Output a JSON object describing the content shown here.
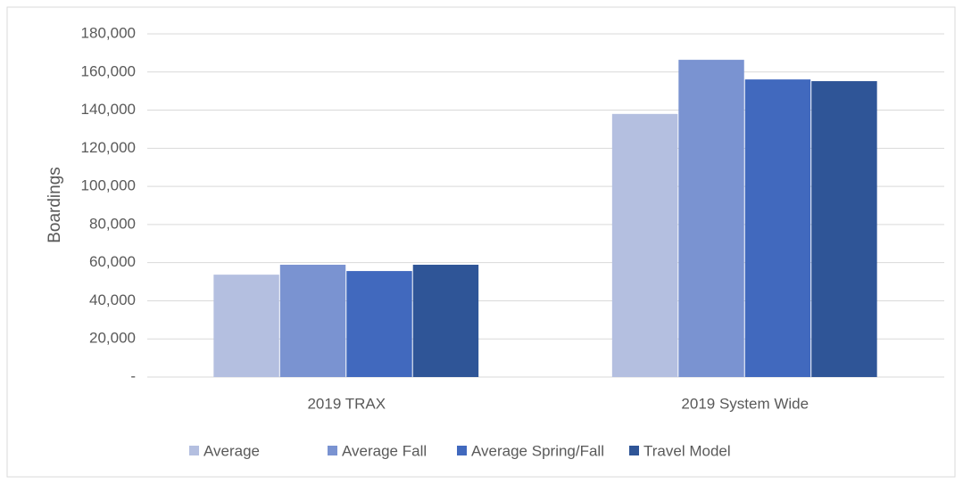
{
  "chart_data": {
    "type": "bar",
    "y_label": "Boardings",
    "categories": [
      "2019 TRAX",
      "2019 System Wide"
    ],
    "series": [
      {
        "name": "Average",
        "color": "#b4bfe0",
        "values": [
          53700,
          138000
        ]
      },
      {
        "name": "Average Fall",
        "color": "#7a93d1",
        "values": [
          58900,
          166400
        ]
      },
      {
        "name": "Average Spring/Fall",
        "color": "#4169be",
        "values": [
          55600,
          156100
        ]
      },
      {
        "name": "Travel Model",
        "color": "#2f5597",
        "values": [
          58900,
          155200
        ]
      }
    ],
    "ylim": [
      0,
      180000
    ],
    "yticks": [
      {
        "value": 0,
        "label": "-"
      },
      {
        "value": 20000,
        "label": "20,000"
      },
      {
        "value": 40000,
        "label": "40,000"
      },
      {
        "value": 60000,
        "label": "60,000"
      },
      {
        "value": 80000,
        "label": "80,000"
      },
      {
        "value": 100000,
        "label": "100,000"
      },
      {
        "value": 120000,
        "label": "120,000"
      },
      {
        "value": 140000,
        "label": "140,000"
      },
      {
        "value": 160000,
        "label": "160,000"
      },
      {
        "value": 180000,
        "label": "180,000"
      }
    ],
    "grid": true,
    "legend": "bottom"
  }
}
